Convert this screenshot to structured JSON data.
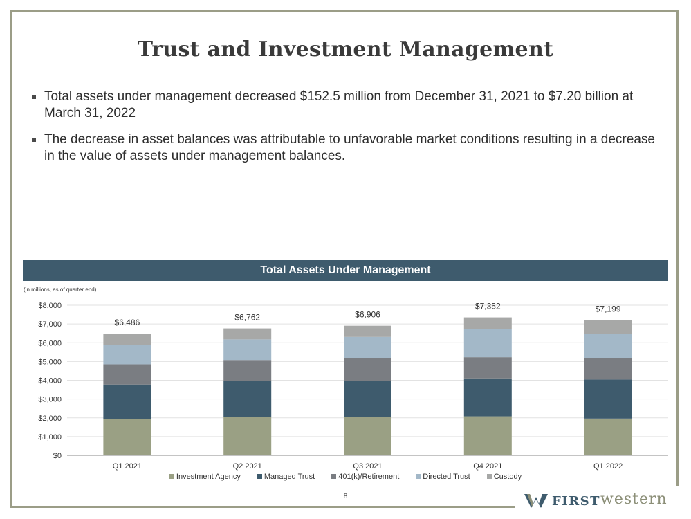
{
  "slide": {
    "title": "Trust and Investment Management",
    "bullets": [
      "Total assets under management decreased $152.5 million from December 31, 2021 to $7.20 billion at March 31, 2022",
      "The decrease in asset balances was attributable to unfavorable market conditions resulting in a decrease in the value of assets under management balances."
    ],
    "page_number": "8",
    "logo": {
      "first": "FIRST",
      "second": "western"
    }
  },
  "colors": {
    "banner": "#3e5b6d",
    "frame": "#9b9d87"
  },
  "chart_data": {
    "type": "bar",
    "stacked": true,
    "title": "Total Assets Under Management",
    "subtitle": "(in millions, as of quarter end)",
    "categories": [
      "Q1 2021",
      "Q2 2021",
      "Q3 2021",
      "Q4 2021",
      "Q1 2022"
    ],
    "series": [
      {
        "name": "Investment Agency",
        "color": "#9aa084",
        "values": [
          1950,
          2050,
          2030,
          2080,
          1960
        ]
      },
      {
        "name": "Managed Trust",
        "color": "#3e5b6d",
        "values": [
          1820,
          1900,
          1950,
          2020,
          2080
        ]
      },
      {
        "name": "401(k)/Retirement",
        "color": "#7a7d82",
        "values": [
          1080,
          1130,
          1200,
          1130,
          1140
        ]
      },
      {
        "name": "Directed Trust",
        "color": "#a3b8c8",
        "values": [
          1040,
          1100,
          1130,
          1500,
          1300
        ]
      },
      {
        "name": "Custody",
        "color": "#a7a8a7",
        "values": [
          596,
          582,
          596,
          622,
          719
        ]
      }
    ],
    "totals": [
      "$6,486",
      "$6,762",
      "$6,906",
      "$7,352",
      "$7,199"
    ],
    "ylim": [
      0,
      8000
    ],
    "ytick_values": [
      0,
      1000,
      2000,
      3000,
      4000,
      5000,
      6000,
      7000,
      8000
    ],
    "ytick_labels": [
      "$0",
      "$1,000",
      "$2,000",
      "$3,000",
      "$4,000",
      "$5,000",
      "$6,000",
      "$7,000",
      "$8,000"
    ],
    "grid": true,
    "legend_position": "bottom"
  }
}
